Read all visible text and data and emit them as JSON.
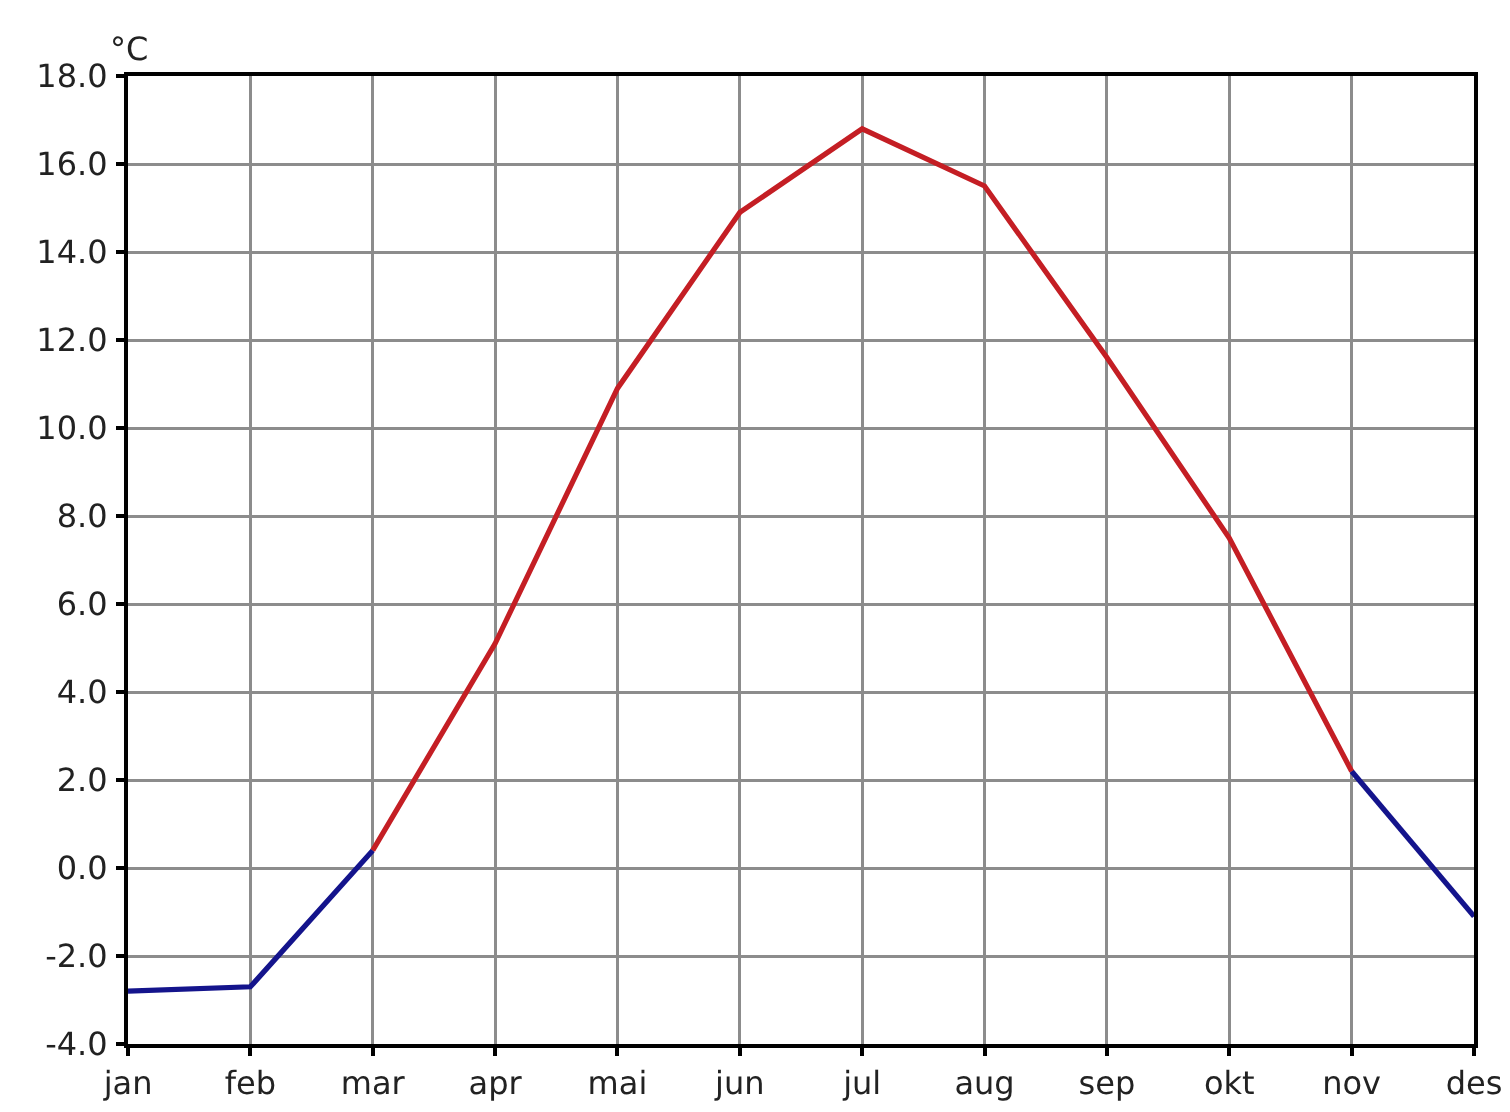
{
  "chart_data": {
    "type": "line",
    "ylabel": "°C",
    "categories": [
      "jan",
      "feb",
      "mar",
      "apr",
      "mai",
      "jun",
      "jul",
      "aug",
      "sep",
      "okt",
      "nov",
      "des"
    ],
    "ylim": [
      -4,
      18
    ],
    "yticks": [
      {
        "value": -4,
        "label": "-4.0"
      },
      {
        "value": -2,
        "label": "-2.0"
      },
      {
        "value": 0,
        "label": "0.0"
      },
      {
        "value": 2,
        "label": "2.0"
      },
      {
        "value": 4,
        "label": "4.0"
      },
      {
        "value": 6,
        "label": "6.0"
      },
      {
        "value": 8,
        "label": "8.0"
      },
      {
        "value": 10,
        "label": "10.0"
      },
      {
        "value": 12,
        "label": "12.0"
      },
      {
        "value": 14,
        "label": "14.0"
      },
      {
        "value": 16,
        "label": "16.0"
      },
      {
        "value": 18,
        "label": "18.0"
      }
    ],
    "series": [
      {
        "color": "#14148c",
        "values": [
          -2.8,
          -2.7,
          0.4,
          null,
          null,
          null,
          null,
          null,
          null,
          null,
          2.2,
          -1.1
        ]
      },
      {
        "color": "#c41e24",
        "values": [
          null,
          null,
          0.4,
          5.1,
          10.9,
          14.9,
          16.8,
          15.5,
          11.6,
          7.5,
          2.2,
          null
        ]
      }
    ],
    "grid": true
  }
}
